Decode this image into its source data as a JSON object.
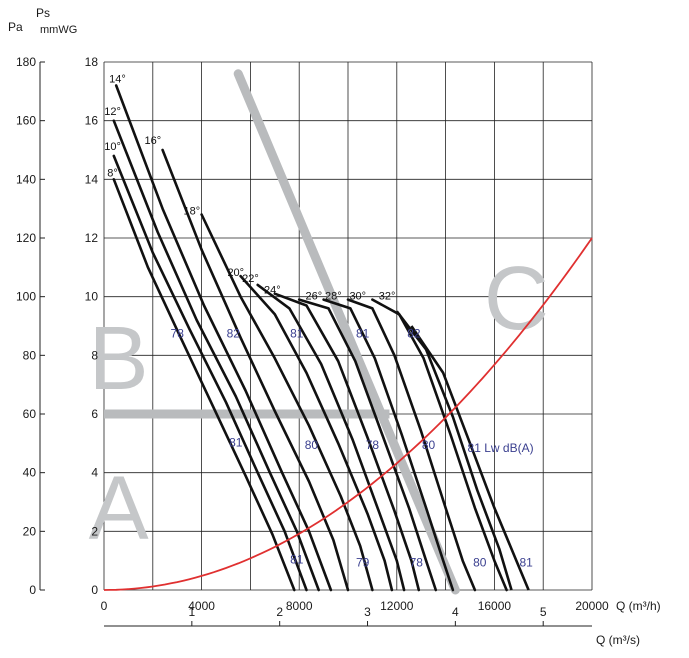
{
  "chart_data": {
    "type": "line",
    "title": "",
    "x_axis_label": "Q (m³/h)",
    "x_ticks": [
      0,
      4000,
      8000,
      12000,
      16000,
      20000
    ],
    "xlim": [
      0,
      20000
    ],
    "x2_axis_label": "Q (m³/s)",
    "x2_ticks": [
      1,
      2,
      3,
      4,
      5
    ],
    "y_left_label": "Pa",
    "y_left_ticks": [
      0,
      20,
      40,
      60,
      80,
      100,
      120,
      140,
      160,
      180
    ],
    "y_right_label_line1": "Ps",
    "y_right_label_line2": "mmWG",
    "y_right_ticks": [
      0,
      2,
      4,
      6,
      8,
      10,
      12,
      14,
      16,
      18
    ],
    "ylim_mmwg": [
      0,
      18
    ],
    "grid": true,
    "zone_letters": [
      "A",
      "B",
      "C"
    ],
    "lw_label": "81 Lw dB(A)",
    "blade_angle_series": [
      {
        "name": "8°",
        "points": [
          [
            400,
            14.0
          ],
          [
            1800,
            11.0
          ],
          [
            3200,
            8.5
          ],
          [
            4500,
            6.2
          ],
          [
            5800,
            3.9
          ],
          [
            6900,
            1.9
          ],
          [
            7800,
            0.0
          ]
        ]
      },
      {
        "name": "10°",
        "points": [
          [
            400,
            14.8
          ],
          [
            2000,
            11.5
          ],
          [
            3500,
            8.9
          ],
          [
            5000,
            6.4
          ],
          [
            6300,
            4.0
          ],
          [
            7400,
            2.0
          ],
          [
            8300,
            0.0
          ]
        ]
      },
      {
        "name": "12°",
        "points": [
          [
            400,
            16.0
          ],
          [
            2200,
            12.2
          ],
          [
            3800,
            9.2
          ],
          [
            5400,
            6.6
          ],
          [
            6800,
            4.0
          ],
          [
            7900,
            2.0
          ],
          [
            8800,
            0.0
          ]
        ]
      },
      {
        "name": "14°",
        "points": [
          [
            500,
            17.2
          ],
          [
            2400,
            13.0
          ],
          [
            4100,
            9.7
          ],
          [
            5800,
            6.8
          ],
          [
            7300,
            4.0
          ],
          [
            8400,
            2.0
          ],
          [
            9300,
            0.0
          ]
        ]
      },
      {
        "name": "16°",
        "points": [
          [
            2400,
            15.0
          ],
          [
            4000,
            11.6
          ],
          [
            5600,
            8.6
          ],
          [
            7000,
            6.1
          ],
          [
            8400,
            3.7
          ],
          [
            9400,
            1.7
          ],
          [
            10000,
            0.0
          ]
        ]
      },
      {
        "name": "18°",
        "points": [
          [
            4000,
            12.8
          ],
          [
            5600,
            10.0
          ],
          [
            7000,
            7.9
          ],
          [
            8400,
            5.6
          ],
          [
            9700,
            3.2
          ],
          [
            10500,
            1.5
          ],
          [
            11000,
            0.0
          ]
        ]
      },
      {
        "name": "20°",
        "points": [
          [
            5600,
            10.7
          ],
          [
            7000,
            9.4
          ],
          [
            8300,
            7.4
          ],
          [
            9600,
            5.0
          ],
          [
            10800,
            2.6
          ],
          [
            11500,
            1.0
          ],
          [
            11800,
            0.0
          ]
        ]
      },
      {
        "name": "22°",
        "points": [
          [
            6300,
            10.4
          ],
          [
            7600,
            9.6
          ],
          [
            8900,
            7.7
          ],
          [
            10200,
            5.1
          ],
          [
            11300,
            2.6
          ],
          [
            12000,
            1.0
          ],
          [
            12300,
            0.0
          ]
        ]
      },
      {
        "name": "24°",
        "points": [
          [
            7000,
            10.1
          ],
          [
            8300,
            9.7
          ],
          [
            9600,
            7.8
          ],
          [
            10800,
            5.2
          ],
          [
            11900,
            2.7
          ],
          [
            12600,
            1.0
          ],
          [
            12900,
            0.0
          ]
        ]
      },
      {
        "name": "26°",
        "points": [
          [
            8000,
            9.9
          ],
          [
            9200,
            9.6
          ],
          [
            10300,
            7.8
          ],
          [
            11400,
            5.3
          ],
          [
            12500,
            2.8
          ],
          [
            13200,
            1.0
          ],
          [
            13600,
            0.0
          ]
        ]
      },
      {
        "name": "28°",
        "points": [
          [
            9000,
            9.9
          ],
          [
            10100,
            9.6
          ],
          [
            11100,
            7.9
          ],
          [
            12200,
            5.3
          ],
          [
            13200,
            2.8
          ],
          [
            13900,
            1.0
          ],
          [
            14300,
            0.0
          ]
        ]
      },
      {
        "name": "30°",
        "points": [
          [
            10000,
            9.9
          ],
          [
            11000,
            9.6
          ],
          [
            11900,
            8.0
          ],
          [
            13000,
            5.4
          ],
          [
            14000,
            2.8
          ],
          [
            14700,
            1.0
          ],
          [
            15200,
            0.0
          ]
        ]
      },
      {
        "name": "32°",
        "points": [
          [
            11000,
            9.9
          ],
          [
            12100,
            9.4
          ],
          [
            13100,
            7.9
          ],
          [
            14200,
            5.3
          ],
          [
            15200,
            2.8
          ],
          [
            16000,
            1.0
          ],
          [
            16500,
            0.0
          ]
        ]
      }
    ],
    "blade_angle_extra_curves": [
      [
        [
          12000,
          9.5
        ],
        [
          13200,
          8.2
        ],
        [
          14300,
          5.9
        ],
        [
          15300,
          3.4
        ],
        [
          16200,
          1.4
        ],
        [
          16700,
          0.0
        ]
      ],
      [
        [
          12600,
          9.0
        ],
        [
          13900,
          7.4
        ],
        [
          15000,
          5.0
        ],
        [
          16000,
          2.8
        ],
        [
          16900,
          1.0
        ],
        [
          17400,
          0.0
        ]
      ]
    ],
    "system_curve": [
      [
        0,
        0
      ],
      [
        4000,
        0.48
      ],
      [
        8000,
        1.92
      ],
      [
        12000,
        4.32
      ],
      [
        14000,
        5.88
      ],
      [
        16000,
        7.68
      ],
      [
        18000,
        9.72
      ],
      [
        20000,
        12.0
      ]
    ],
    "sound_labels": [
      {
        "text": "78",
        "x": 3000,
        "y": 8.6
      },
      {
        "text": "82",
        "x": 5300,
        "y": 8.6
      },
      {
        "text": "81",
        "x": 7900,
        "y": 8.6
      },
      {
        "text": "81",
        "x": 10600,
        "y": 8.6
      },
      {
        "text": "82",
        "x": 12700,
        "y": 8.6
      },
      {
        "text": "81",
        "x": 5400,
        "y": 4.9
      },
      {
        "text": "80",
        "x": 8500,
        "y": 4.8
      },
      {
        "text": "78",
        "x": 11000,
        "y": 4.8
      },
      {
        "text": "80",
        "x": 13300,
        "y": 4.8
      },
      {
        "text": "81",
        "x": 7900,
        "y": 0.9
      },
      {
        "text": "79",
        "x": 10600,
        "y": 0.8
      },
      {
        "text": "78",
        "x": 12800,
        "y": 0.8
      },
      {
        "text": "80",
        "x": 15400,
        "y": 0.8
      },
      {
        "text": "81",
        "x": 17300,
        "y": 0.8
      }
    ],
    "colors": {
      "curve": "#111111",
      "system_curve": "#e03030",
      "zone_band": "#b9bbbd",
      "zone_letter": "#c5c7c9",
      "sound_label": "#3a3f8f",
      "grid": "#222222"
    }
  }
}
